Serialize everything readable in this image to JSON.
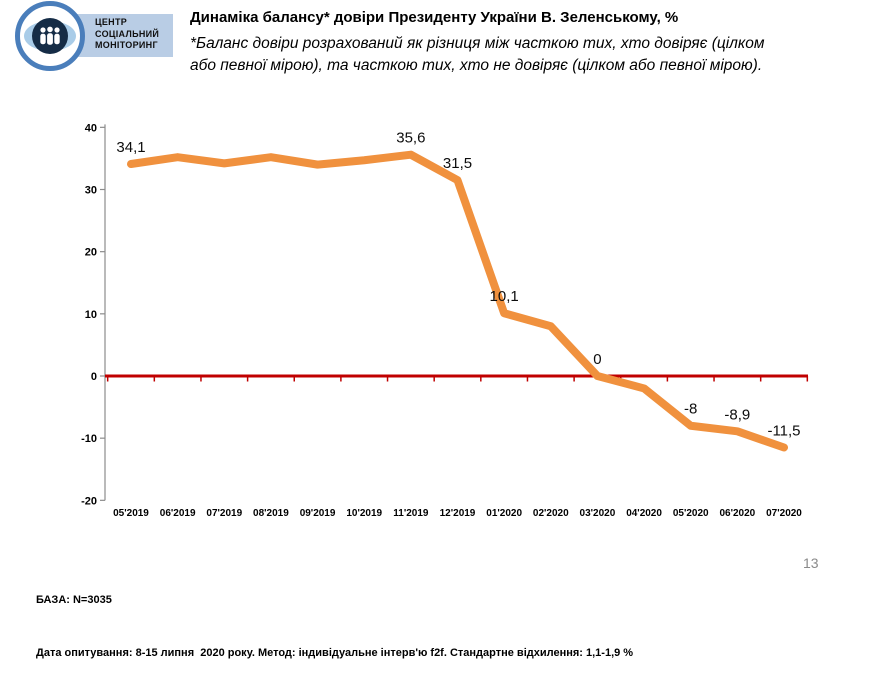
{
  "header": {
    "logo": {
      "line1": "ЦЕНТР",
      "line2": "СОЦІАЛЬНИЙ",
      "line3": "МОНІТОРИНГ"
    },
    "title": "Динаміка балансу* довіри Президенту України В. Зеленському, %",
    "subtitle_line1": "*Баланс довіри розрахований як різниця між часткою тих, хто довіряє (цілком",
    "subtitle_line2": "або певної мірою), та часткою тих, хто не довіряє (цілком або певної мірою)."
  },
  "chart_data": {
    "type": "line",
    "title": "Динаміка балансу довіри Президенту України В. Зеленському, %",
    "xlabel": "",
    "ylabel": "",
    "categories": [
      "05'2019",
      "06'2019",
      "07'2019",
      "08'2019",
      "09'2019",
      "10'2019",
      "11'2019",
      "12'2019",
      "01'2020",
      "02'2020",
      "03'2020",
      "04'2020",
      "05'2020",
      "06'2020",
      "07'2020"
    ],
    "values": [
      34.1,
      35.2,
      34.2,
      35.2,
      34.0,
      34.7,
      35.6,
      31.5,
      10.1,
      8.0,
      0,
      -2.0,
      -8.0,
      -8.9,
      -11.5
    ],
    "point_labels": [
      "34,1",
      null,
      null,
      null,
      null,
      null,
      "35,6",
      "31,5",
      "10,1",
      null,
      "0",
      null,
      "-8",
      "-8,9",
      "-11,5"
    ],
    "y_ticks": [
      40,
      30,
      20,
      10,
      0,
      -10,
      -20
    ],
    "ylim": [
      -20,
      40
    ],
    "grid": false,
    "legend": "none",
    "colors": {
      "line": "#F0913E",
      "zero_line": "#C00000",
      "axis": "#8c8c8c",
      "tick_label": "#000000"
    }
  },
  "footer": {
    "base": "БАЗА: N=3035",
    "details": "Дата опитування: 8-15 липня  2020 року. Метод: індивідуальне інтерв'ю f2f. Стандартне відхилення: 1,1-1,9 %",
    "page_number": "13"
  }
}
